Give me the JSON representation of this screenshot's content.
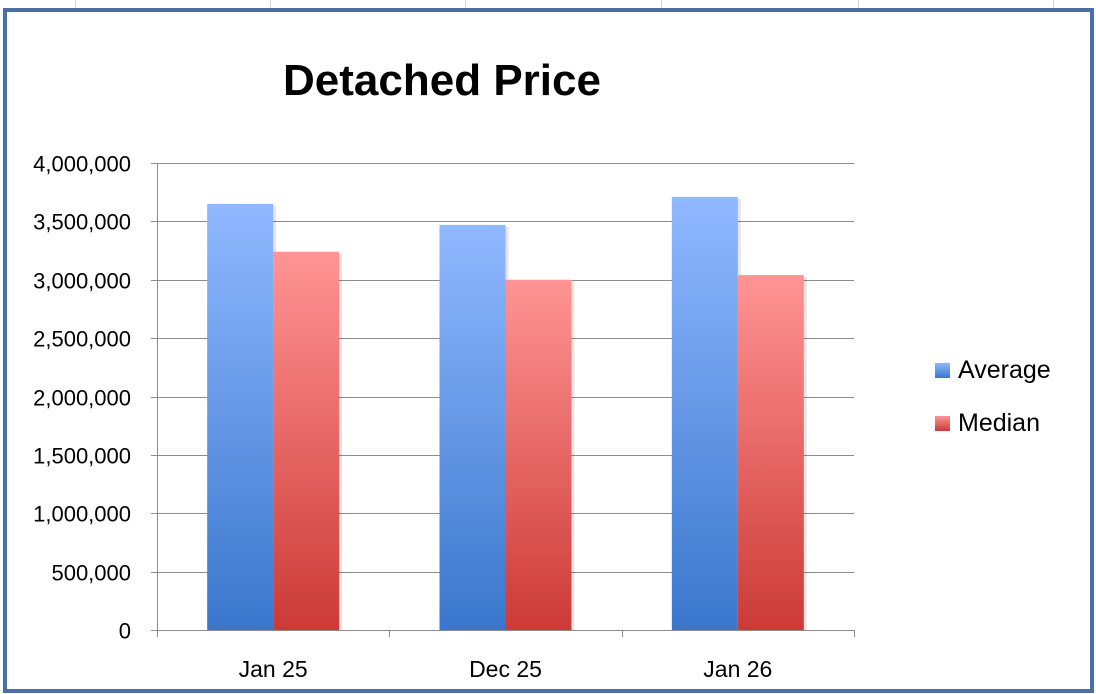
{
  "chart_data": {
    "type": "bar",
    "title": "Detached Price",
    "xlabel": "",
    "ylabel": "",
    "categories": [
      "Jan 25",
      "Dec 25",
      "Jan 26"
    ],
    "series": [
      {
        "name": "Average",
        "values": [
          3650000,
          3470000,
          3710000
        ],
        "color": "#5b8fe0"
      },
      {
        "name": "Median",
        "values": [
          3240000,
          3000000,
          3040000
        ],
        "color": "#e26565"
      }
    ],
    "ylim": [
      0,
      4000000
    ],
    "ytick_labels": [
      "0",
      "500,000",
      "1,000,000",
      "1,500,000",
      "2,000,000",
      "2,500,000",
      "3,000,000",
      "3,500,000",
      "4,000,000"
    ],
    "grid": true,
    "legend_position": "right"
  }
}
